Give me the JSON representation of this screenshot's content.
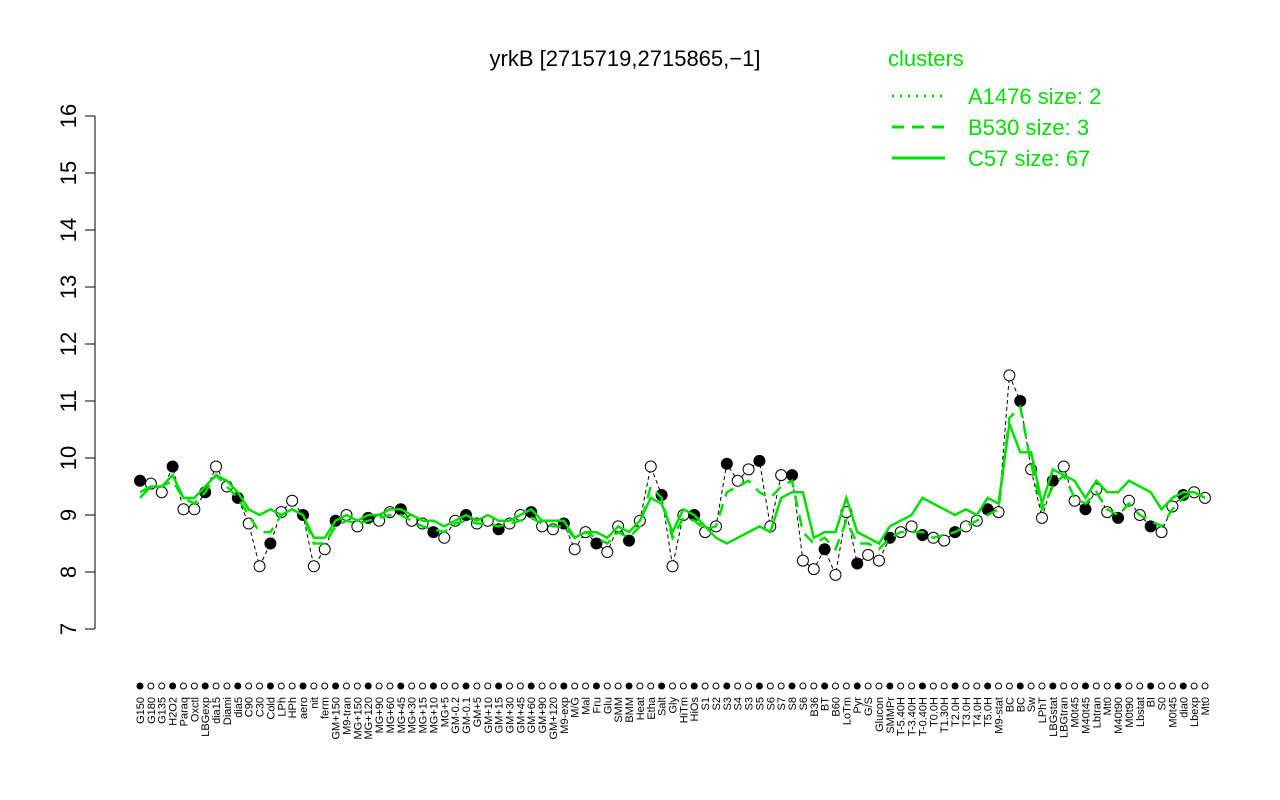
{
  "chart_data": {
    "type": "line",
    "title": "yrkB [2715719,2715865,−1]",
    "legend_title": "clusters",
    "legend_position": "top-right",
    "categories": [
      "G150",
      "G180",
      "G135",
      "H2O2",
      "Paraq",
      "Oxctl",
      "LBGexp",
      "dia15",
      "Diami",
      "dia5",
      "C90",
      "C30",
      "Cold",
      "LPh",
      "HPh",
      "aero",
      "nit",
      "ferm",
      "GM+150",
      "M9-tran",
      "MG+150",
      "MG+120",
      "MG+90",
      "MG+60",
      "MG+45",
      "MG+30",
      "MG+15",
      "MG+10",
      "MG+5",
      "GM-0.2",
      "GM-0.1",
      "GM+5",
      "GM+10",
      "GM+15",
      "GM+30",
      "GM+45",
      "GM+60",
      "GM+90",
      "GM+120",
      "M9-exp",
      "M/G",
      "Mal",
      "Fru",
      "Glu",
      "SMM",
      "BMM",
      "Heat",
      "Etha",
      "Salt",
      "Gly",
      "HiTm",
      "HiOs",
      "S1",
      "S2",
      "S3",
      "S4",
      "S3",
      "S5",
      "S6",
      "S7",
      "S8",
      "S6",
      "B36",
      "BT",
      "B60",
      "LoTm",
      "Pyr",
      "G/S",
      "Glucon",
      "SMMPr",
      "T-5.40H",
      "T-3.40H",
      "T-0.40H",
      "T0.0H",
      "T1.30H",
      "T2.0H",
      "T3.0H",
      "T4.0H",
      "T5.0H",
      "M9-stat",
      "BC",
      "BC",
      "Sw",
      "LPhT",
      "LBGstat",
      "LBGtran",
      "M0t45",
      "M40t45",
      "Lbtran",
      "Mt0",
      "M40t90",
      "M0t90",
      "Lbstat",
      "BI",
      "S0",
      "M0t45",
      "dia0",
      "Lbexp",
      "Mt0"
    ],
    "series": [
      {
        "name": "A1476 size: 2",
        "color": "#00e000",
        "dash": "dotted",
        "values": [
          9.6,
          9.55,
          9.4,
          9.85,
          9.1,
          9.1,
          9.4,
          9.85,
          9.5,
          9.3,
          8.85,
          8.1,
          8.5,
          9.05,
          9.25,
          9.0,
          8.1,
          8.4,
          8.9,
          9.0,
          8.8,
          8.95,
          8.9,
          9.05,
          9.1,
          8.9,
          8.85,
          8.7,
          8.6,
          8.9,
          9.0,
          8.85,
          8.9,
          8.75,
          8.85,
          9.0,
          9.05,
          8.8,
          8.75,
          8.85,
          8.4,
          8.7,
          8.5,
          8.35,
          8.8,
          8.55,
          8.9,
          9.85,
          9.35,
          8.1,
          9.0,
          9.0,
          8.7,
          8.8,
          9.9,
          9.6,
          9.8,
          9.95,
          8.8,
          9.7,
          9.7,
          8.2,
          8.05,
          8.4,
          7.95,
          9.05,
          8.15,
          8.3,
          8.2,
          8.6,
          8.7,
          8.8,
          8.65,
          8.6,
          8.55,
          8.7,
          8.8,
          8.9,
          9.1,
          9.05,
          11.45,
          11.0,
          9.8,
          8.95,
          9.6,
          9.85,
          9.25,
          9.1,
          9.45,
          9.05,
          8.95,
          9.25,
          9.0,
          8.8,
          8.7,
          9.15,
          9.35,
          9.4,
          9.3
        ]
      },
      {
        "name": "B530 size: 3",
        "color": "#00e000",
        "dash": "dashed",
        "values": [
          9.4,
          9.5,
          9.5,
          9.6,
          9.3,
          9.2,
          9.4,
          9.7,
          9.5,
          9.3,
          9.0,
          8.7,
          8.7,
          9.0,
          9.1,
          9.0,
          8.5,
          8.5,
          8.8,
          8.9,
          8.85,
          8.9,
          8.95,
          9.0,
          9.0,
          8.9,
          8.8,
          8.75,
          8.7,
          8.85,
          8.9,
          8.85,
          8.85,
          8.8,
          8.85,
          8.9,
          8.95,
          8.85,
          8.8,
          8.8,
          8.6,
          8.7,
          8.6,
          8.5,
          8.7,
          8.6,
          8.8,
          9.5,
          9.3,
          8.6,
          8.95,
          8.9,
          8.75,
          8.8,
          9.4,
          9.5,
          9.6,
          9.4,
          9.3,
          9.5,
          9.6,
          8.7,
          8.5,
          8.6,
          8.4,
          8.9,
          8.5,
          8.5,
          8.4,
          8.6,
          8.7,
          8.7,
          8.7,
          8.6,
          8.65,
          8.7,
          8.8,
          8.9,
          9.0,
          9.1,
          10.7,
          10.9,
          9.9,
          9.1,
          9.5,
          9.7,
          9.3,
          9.2,
          9.4,
          9.1,
          9.0,
          9.2,
          9.0,
          8.9,
          8.8,
          9.1,
          9.3,
          9.4,
          9.3
        ]
      },
      {
        "name": "C57 size: 67",
        "color": "#00e000",
        "dash": "solid",
        "values": [
          9.3,
          9.5,
          9.5,
          9.7,
          9.3,
          9.3,
          9.5,
          9.7,
          9.6,
          9.4,
          9.1,
          9.0,
          9.1,
          9.0,
          9.1,
          9.0,
          8.6,
          8.6,
          8.9,
          9.0,
          8.9,
          9.0,
          9.0,
          9.1,
          9.1,
          9.0,
          8.9,
          8.9,
          8.8,
          8.9,
          9.0,
          8.9,
          9.0,
          8.9,
          8.9,
          9.0,
          9.1,
          8.9,
          8.9,
          8.9,
          8.6,
          8.7,
          8.7,
          8.6,
          8.8,
          8.7,
          8.9,
          9.3,
          9.2,
          8.7,
          9.1,
          9.0,
          8.8,
          8.6,
          8.5,
          8.6,
          8.7,
          8.8,
          8.7,
          9.3,
          9.4,
          9.4,
          8.6,
          8.7,
          8.7,
          9.3,
          8.7,
          8.6,
          8.5,
          8.8,
          8.9,
          9.0,
          9.3,
          9.2,
          9.1,
          9.0,
          9.1,
          9.0,
          9.3,
          9.2,
          10.6,
          10.1,
          10.1,
          9.2,
          9.8,
          9.7,
          9.6,
          9.3,
          9.6,
          9.4,
          9.4,
          9.6,
          9.5,
          9.4,
          9.1,
          9.3,
          9.4,
          9.4,
          9.3
        ]
      }
    ],
    "ylim": [
      7,
      16
    ],
    "yticks": [
      7,
      8,
      9,
      10,
      11,
      12,
      13,
      14,
      15,
      16
    ]
  }
}
